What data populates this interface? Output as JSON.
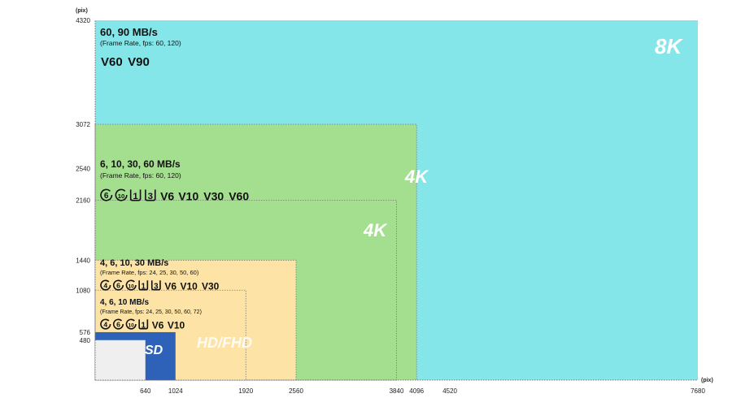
{
  "chart_data": {
    "type": "area",
    "x_unit": "(pix)",
    "y_unit": "(pix)",
    "xlim": [
      0,
      7680
    ],
    "ylim": [
      0,
      4320
    ],
    "x_ticks": [
      640,
      1024,
      1920,
      2560,
      3840,
      4096,
      4520,
      7680
    ],
    "y_ticks": [
      480,
      576,
      1080,
      1440,
      2160,
      2540,
      3072,
      4320
    ],
    "regions": [
      {
        "label": "8K",
        "width": 7680,
        "height": 4320,
        "color": "#85e6ea",
        "style": "solid"
      },
      {
        "label": "4K",
        "width": 4096,
        "height": 3072,
        "color": "#a4df8f",
        "style": "dotted"
      },
      {
        "label": "4K",
        "width": 3840,
        "height": 2160,
        "color": "#a4df8f",
        "style": "dotted"
      },
      {
        "label": "HD/FHD",
        "width": 2560,
        "height": 1440,
        "color": "#fde4a6",
        "style": "dotted"
      },
      {
        "label": "",
        "width": 1920,
        "height": 1080,
        "color": "#fde4a6",
        "style": "dotted"
      },
      {
        "label": "SD",
        "width": 1024,
        "height": 576,
        "color": "#2e62b8",
        "style": "solid"
      },
      {
        "label": "",
        "width": 640,
        "height": 480,
        "color": "#efefef",
        "style": "solid"
      }
    ],
    "annotations": [
      {
        "speed": "60, 90 MB/s",
        "fps": "(Frame Rate, fps: 60, 120)",
        "classes": [
          "V60",
          "V90"
        ]
      },
      {
        "speed": "6, 10, 30, 60 MB/s",
        "fps": "(Frame Rate, fps: 60, 120)",
        "classes": [
          "6",
          "10",
          "1",
          "3",
          "V6",
          "V10",
          "V30",
          "V60"
        ]
      },
      {
        "speed": "4, 6, 10, 30 MB/s",
        "fps": "(Frame Rate, fps: 24, 25, 30, 50, 60)",
        "classes": [
          "4",
          "6",
          "10",
          "1",
          "3",
          "V6",
          "V10",
          "V30"
        ]
      },
      {
        "speed": "4, 6, 10 MB/s",
        "fps": "(Frame Rate, fps: 24, 25, 30, 50, 60, 72)",
        "classes": [
          "4",
          "6",
          "10",
          "1",
          "V6",
          "V10"
        ]
      }
    ]
  }
}
